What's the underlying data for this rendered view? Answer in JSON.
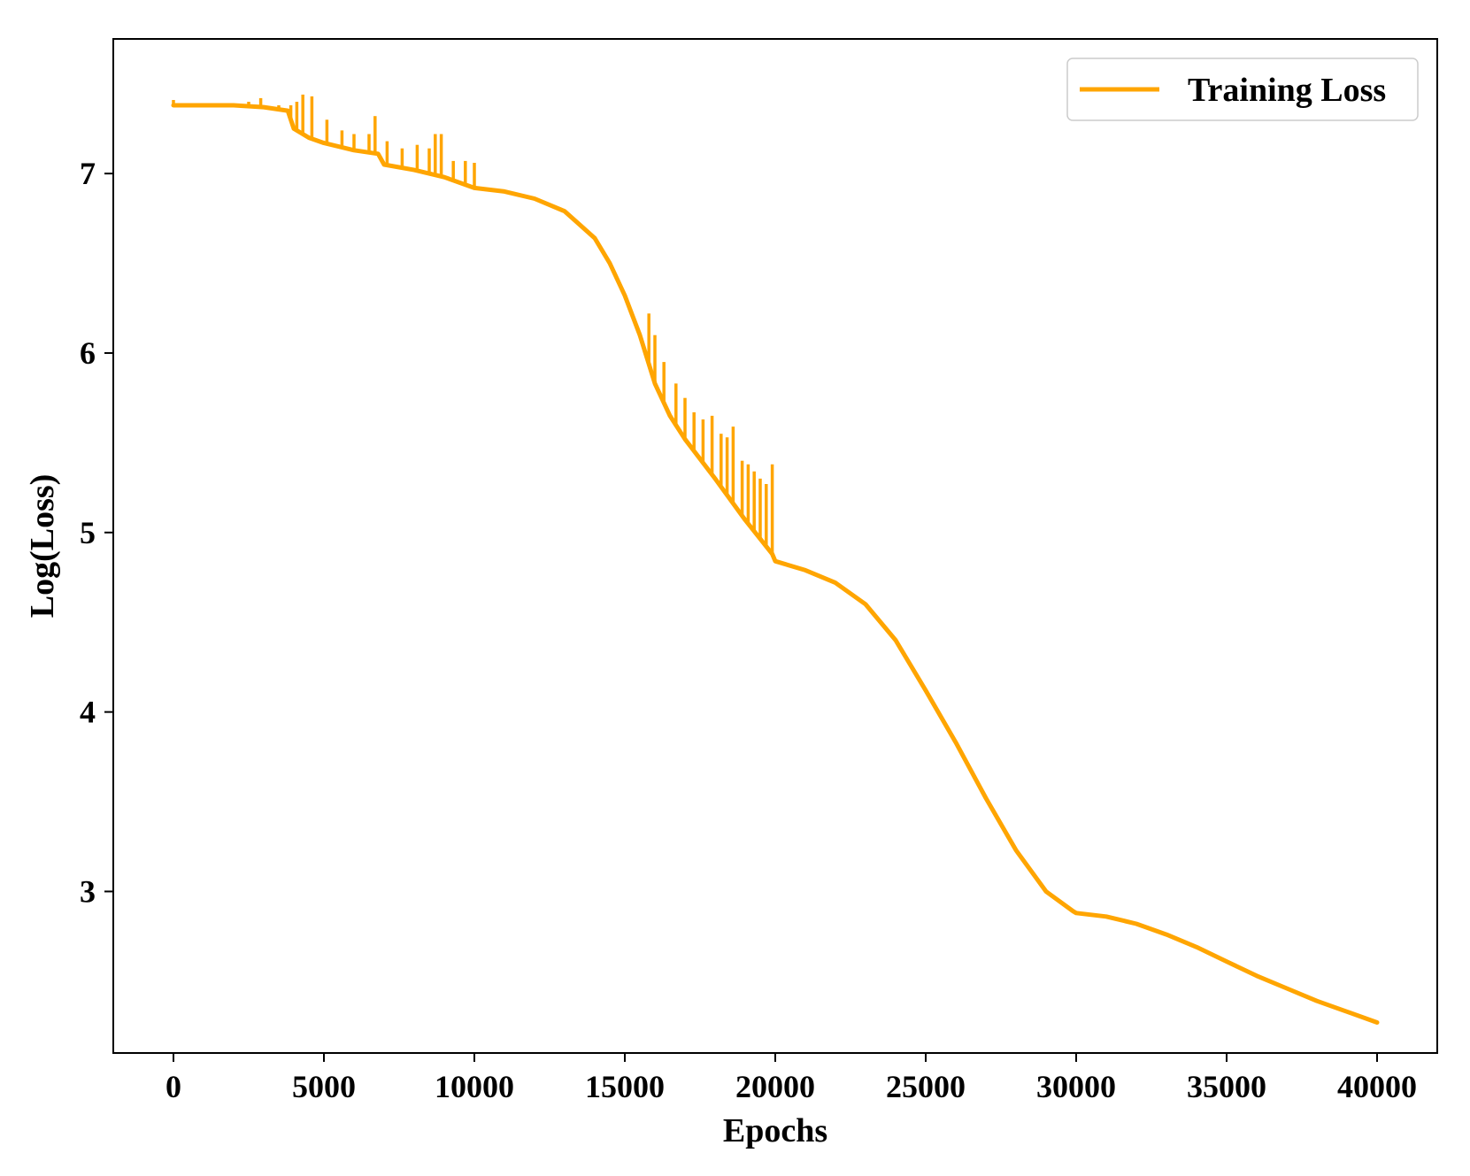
{
  "chart_data": {
    "type": "line",
    "title": "",
    "xlabel": "Epochs",
    "ylabel": "Log(Loss)",
    "xlim": [
      -2000,
      42000
    ],
    "ylim": [
      2.1,
      7.75
    ],
    "xticks": [
      0,
      5000,
      10000,
      15000,
      20000,
      25000,
      30000,
      35000,
      40000
    ],
    "yticks": [
      3,
      4,
      5,
      6,
      7
    ],
    "xtick_labels": [
      "0",
      "5000",
      "10000",
      "15000",
      "20000",
      "25000",
      "30000",
      "35000",
      "40000"
    ],
    "ytick_labels": [
      "3",
      "4",
      "5",
      "6",
      "7"
    ],
    "grid": false,
    "legend_position": "top-right",
    "series": [
      {
        "name": "Training Loss",
        "color": "#FFA500",
        "x": [
          0,
          1000,
          2000,
          3000,
          3800,
          4000,
          4500,
          5000,
          6000,
          6800,
          7000,
          8000,
          9000,
          10000,
          11000,
          12000,
          13000,
          14000,
          14500,
          15000,
          15500,
          16000,
          16500,
          17000,
          18000,
          19000,
          19900,
          20000,
          21000,
          22000,
          23000,
          24000,
          25000,
          26000,
          27000,
          28000,
          29000,
          29900,
          30000,
          31000,
          32000,
          33000,
          34000,
          35000,
          36000,
          37000,
          38000,
          39000,
          40000
        ],
        "y": [
          7.38,
          7.38,
          7.38,
          7.37,
          7.35,
          7.25,
          7.2,
          7.17,
          7.13,
          7.11,
          7.05,
          7.02,
          6.98,
          6.92,
          6.9,
          6.86,
          6.79,
          6.64,
          6.5,
          6.32,
          6.1,
          5.83,
          5.65,
          5.52,
          5.3,
          5.07,
          4.88,
          4.84,
          4.79,
          4.72,
          4.6,
          4.4,
          4.12,
          3.83,
          3.52,
          3.23,
          3.0,
          2.89,
          2.88,
          2.86,
          2.82,
          2.76,
          2.69,
          2.61,
          2.53,
          2.46,
          2.39,
          2.33,
          2.27
        ]
      }
    ],
    "spikes": [
      {
        "x": 0,
        "y": 7.41
      },
      {
        "x": 2500,
        "y": 7.4
      },
      {
        "x": 2900,
        "y": 7.42
      },
      {
        "x": 3500,
        "y": 7.38
      },
      {
        "x": 3900,
        "y": 7.38
      },
      {
        "x": 4100,
        "y": 7.4
      },
      {
        "x": 4300,
        "y": 7.44
      },
      {
        "x": 4600,
        "y": 7.43
      },
      {
        "x": 5100,
        "y": 7.3
      },
      {
        "x": 5600,
        "y": 7.24
      },
      {
        "x": 6000,
        "y": 7.22
      },
      {
        "x": 6500,
        "y": 7.22
      },
      {
        "x": 6700,
        "y": 7.32
      },
      {
        "x": 7100,
        "y": 7.18
      },
      {
        "x": 7600,
        "y": 7.14
      },
      {
        "x": 8100,
        "y": 7.16
      },
      {
        "x": 8500,
        "y": 7.14
      },
      {
        "x": 8700,
        "y": 7.22
      },
      {
        "x": 8900,
        "y": 7.22
      },
      {
        "x": 9300,
        "y": 7.07
      },
      {
        "x": 9700,
        "y": 7.07
      },
      {
        "x": 10000,
        "y": 7.06
      },
      {
        "x": 15800,
        "y": 6.22
      },
      {
        "x": 16000,
        "y": 6.1
      },
      {
        "x": 16300,
        "y": 5.95
      },
      {
        "x": 16700,
        "y": 5.83
      },
      {
        "x": 17000,
        "y": 5.75
      },
      {
        "x": 17300,
        "y": 5.67
      },
      {
        "x": 17600,
        "y": 5.63
      },
      {
        "x": 17900,
        "y": 5.65
      },
      {
        "x": 18200,
        "y": 5.55
      },
      {
        "x": 18400,
        "y": 5.53
      },
      {
        "x": 18600,
        "y": 5.59
      },
      {
        "x": 18900,
        "y": 5.4
      },
      {
        "x": 19100,
        "y": 5.38
      },
      {
        "x": 19300,
        "y": 5.34
      },
      {
        "x": 19500,
        "y": 5.3
      },
      {
        "x": 19700,
        "y": 5.27
      },
      {
        "x": 19900,
        "y": 5.38
      }
    ]
  }
}
